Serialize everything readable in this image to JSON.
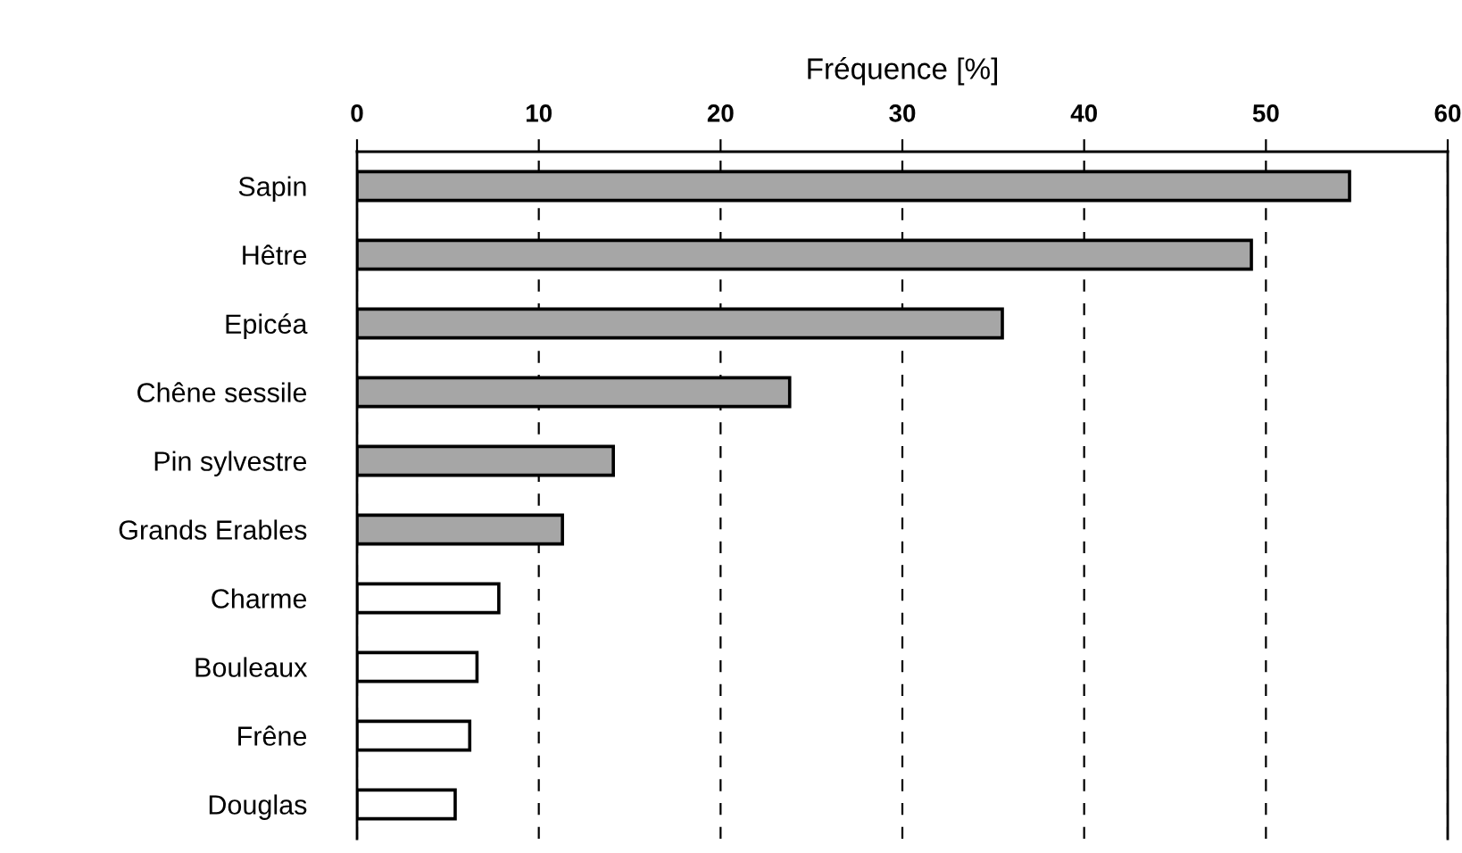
{
  "chart_data": {
    "type": "bar",
    "orientation": "horizontal",
    "xlabel": "Fréquence [%]",
    "categories": [
      "Sapin",
      "Hêtre",
      "Epicéa",
      "Chêne sessile",
      "Pin sylvestre",
      "Grands Erables",
      "Charme",
      "Bouleaux",
      "Frêne",
      "Douglas"
    ],
    "values": [
      54.6,
      49.2,
      35.5,
      23.8,
      14.1,
      11.3,
      7.8,
      6.6,
      6.2,
      5.4
    ],
    "colors": [
      "#a6a6a6",
      "#a6a6a6",
      "#a6a6a6",
      "#a6a6a6",
      "#a6a6a6",
      "#a6a6a6",
      "#ffffff",
      "#ffffff",
      "#ffffff",
      "#ffffff"
    ],
    "xlim": [
      0,
      60
    ],
    "xticks": [
      0,
      10,
      20,
      30,
      40,
      50,
      60
    ],
    "grid": "x"
  }
}
